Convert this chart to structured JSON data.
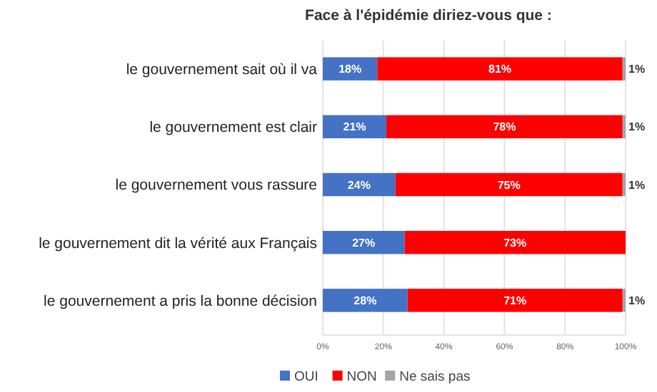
{
  "chart_data": {
    "type": "bar",
    "orientation": "horizontal",
    "stacked": true,
    "title": "Face à l'épidémie diriez-vous que :",
    "categories": [
      "le gouvernement sait où il va",
      "le gouvernement est clair",
      "le gouvernement vous rassure",
      "le gouvernement dit la vérité aux Français",
      "le gouvernement a pris la bonne décision"
    ],
    "series": [
      {
        "name": "OUI",
        "color": "#4472c4",
        "values": [
          18,
          21,
          24,
          27,
          28
        ],
        "value_labels": [
          "18%",
          "21%",
          "24%",
          "27%",
          "28%"
        ]
      },
      {
        "name": "NON",
        "color": "#ff0000",
        "values": [
          81,
          78,
          75,
          73,
          71
        ],
        "value_labels": [
          "81%",
          "78%",
          "75%",
          "73%",
          "71%"
        ]
      },
      {
        "name": "Ne sais pas",
        "color": "#a5a5a5",
        "values": [
          1,
          1,
          1,
          null,
          1
        ],
        "value_labels": [
          "1%",
          "1%",
          "1%",
          null,
          "1%"
        ]
      }
    ],
    "xlim": [
      0,
      100
    ],
    "xticks": [
      {
        "value": 0,
        "label": "0%"
      },
      {
        "value": 20,
        "label": "20%"
      },
      {
        "value": 40,
        "label": "40%"
      },
      {
        "value": 60,
        "label": "60%"
      },
      {
        "value": 80,
        "label": "80%"
      },
      {
        "value": 100,
        "label": "100%"
      }
    ],
    "grid": "x",
    "legend": "bottom"
  }
}
